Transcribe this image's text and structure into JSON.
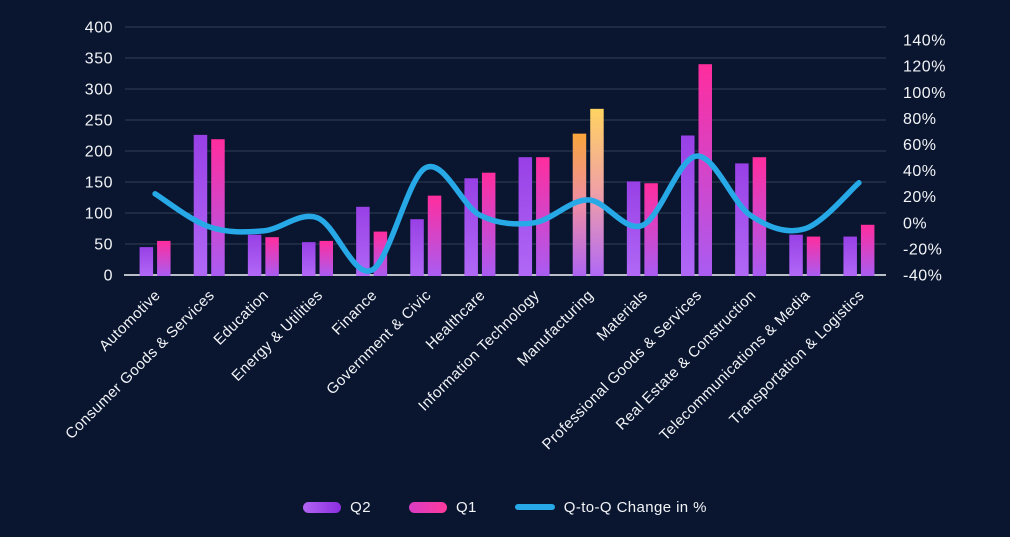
{
  "chart_data": {
    "type": "bar",
    "subtype": "combo-bar-line-dual-axis",
    "title": "",
    "categories": [
      "Automotive",
      "Consumer Goods & Services",
      "Education",
      "Energy & Utilities",
      "Finance",
      "Government & Civic",
      "Healthcare",
      "Information Technology",
      "Manufacturing",
      "Materials",
      "Professional Goods & Services",
      "Real Estate & Construction",
      "Telecommunications & Media",
      "Transportation & Logistics"
    ],
    "series": [
      {
        "name": "Q2",
        "type": "bar",
        "axis": "left",
        "values": [
          45,
          226,
          65,
          53,
          110,
          90,
          156,
          190,
          228,
          151,
          225,
          180,
          65,
          62
        ]
      },
      {
        "name": "Q1",
        "type": "bar",
        "axis": "left",
        "values": [
          55,
          219,
          61,
          55,
          70,
          128,
          165,
          190,
          268,
          148,
          340,
          190,
          62,
          81
        ]
      },
      {
        "name": "Q-to-Q Change in %",
        "type": "line",
        "axis": "right",
        "values": [
          22.2,
          -3.1,
          -6.2,
          3.8,
          -36.4,
          42.2,
          5.8,
          0,
          17.5,
          -2.0,
          51.1,
          5.6,
          -4.6,
          30.6
        ]
      }
    ],
    "highlight_category": "Manufacturing",
    "left_axis": {
      "min": 0,
      "max": 400,
      "step": 50,
      "tick_labels": [
        "0",
        "50",
        "100",
        "150",
        "200",
        "250",
        "300",
        "350",
        "400"
      ]
    },
    "right_axis": {
      "min": -40,
      "max": 150,
      "step": 20,
      "tick_labels": [
        "-40%",
        "-20%",
        "0%",
        "20%",
        "40%",
        "60%",
        "80%",
        "100%",
        "120%",
        "140%"
      ]
    },
    "grid": "horizontal-only",
    "legend": {
      "position": "bottom-center",
      "items": [
        {
          "label": "Q2",
          "swatch": "bar-gradient-purple"
        },
        {
          "label": "Q1",
          "swatch": "bar-gradient-pink"
        },
        {
          "label": "Q-to-Q Change in %",
          "swatch": "line-blue"
        }
      ]
    },
    "colors": {
      "background": "#0a1630",
      "gridline": "#2e3d54",
      "axis_line": "#b9bfc7",
      "text": "#f2f4f7",
      "trend_line": "#27a9e8",
      "q2_bar_gradient": [
        "#9840e6",
        "#b168f6"
      ],
      "q1_bar_gradient": [
        "#ff2d9e",
        "#a95cf2"
      ],
      "q2_highlight_gradient": [
        "#f9a53c",
        "#ee8ca6",
        "#ae64f2"
      ],
      "q1_highlight_gradient": [
        "#ffd361",
        "#f0a0a6",
        "#b168f6"
      ],
      "legend_q2_gradient": [
        "#b265f2",
        "#8c2de0"
      ],
      "legend_q1_gradient": [
        "#d83cc4",
        "#ff3a9c"
      ]
    }
  }
}
